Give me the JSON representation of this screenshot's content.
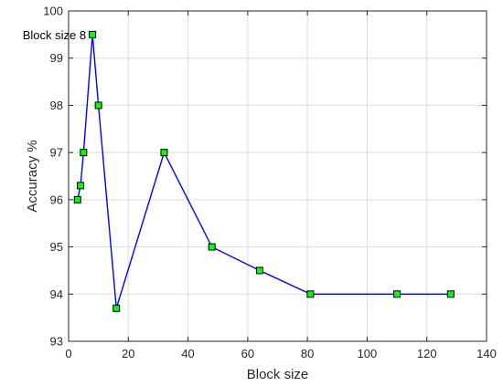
{
  "chart_data": {
    "type": "line",
    "title": "",
    "xlabel": "Block size",
    "ylabel": "Accuracy %",
    "xlim": [
      0,
      140
    ],
    "ylim": [
      93,
      100
    ],
    "xticks": [
      0,
      20,
      40,
      60,
      80,
      100,
      120,
      140
    ],
    "yticks": [
      93,
      94,
      95,
      96,
      97,
      98,
      99,
      100
    ],
    "grid": true,
    "series": [
      {
        "x": [
          3,
          4,
          5,
          8,
          10,
          16,
          32,
          48,
          64,
          81,
          110,
          128
        ],
        "y": [
          96,
          96.3,
          97,
          99.5,
          98,
          93.7,
          97,
          95,
          94.5,
          94,
          94,
          94
        ],
        "line_color": "#0000ff",
        "marker": "square",
        "marker_fill": "#00ff00",
        "marker_edge": "#000000"
      }
    ],
    "annotations": [
      {
        "text": "Block size 8",
        "x": 8,
        "y": 99.5
      }
    ]
  }
}
